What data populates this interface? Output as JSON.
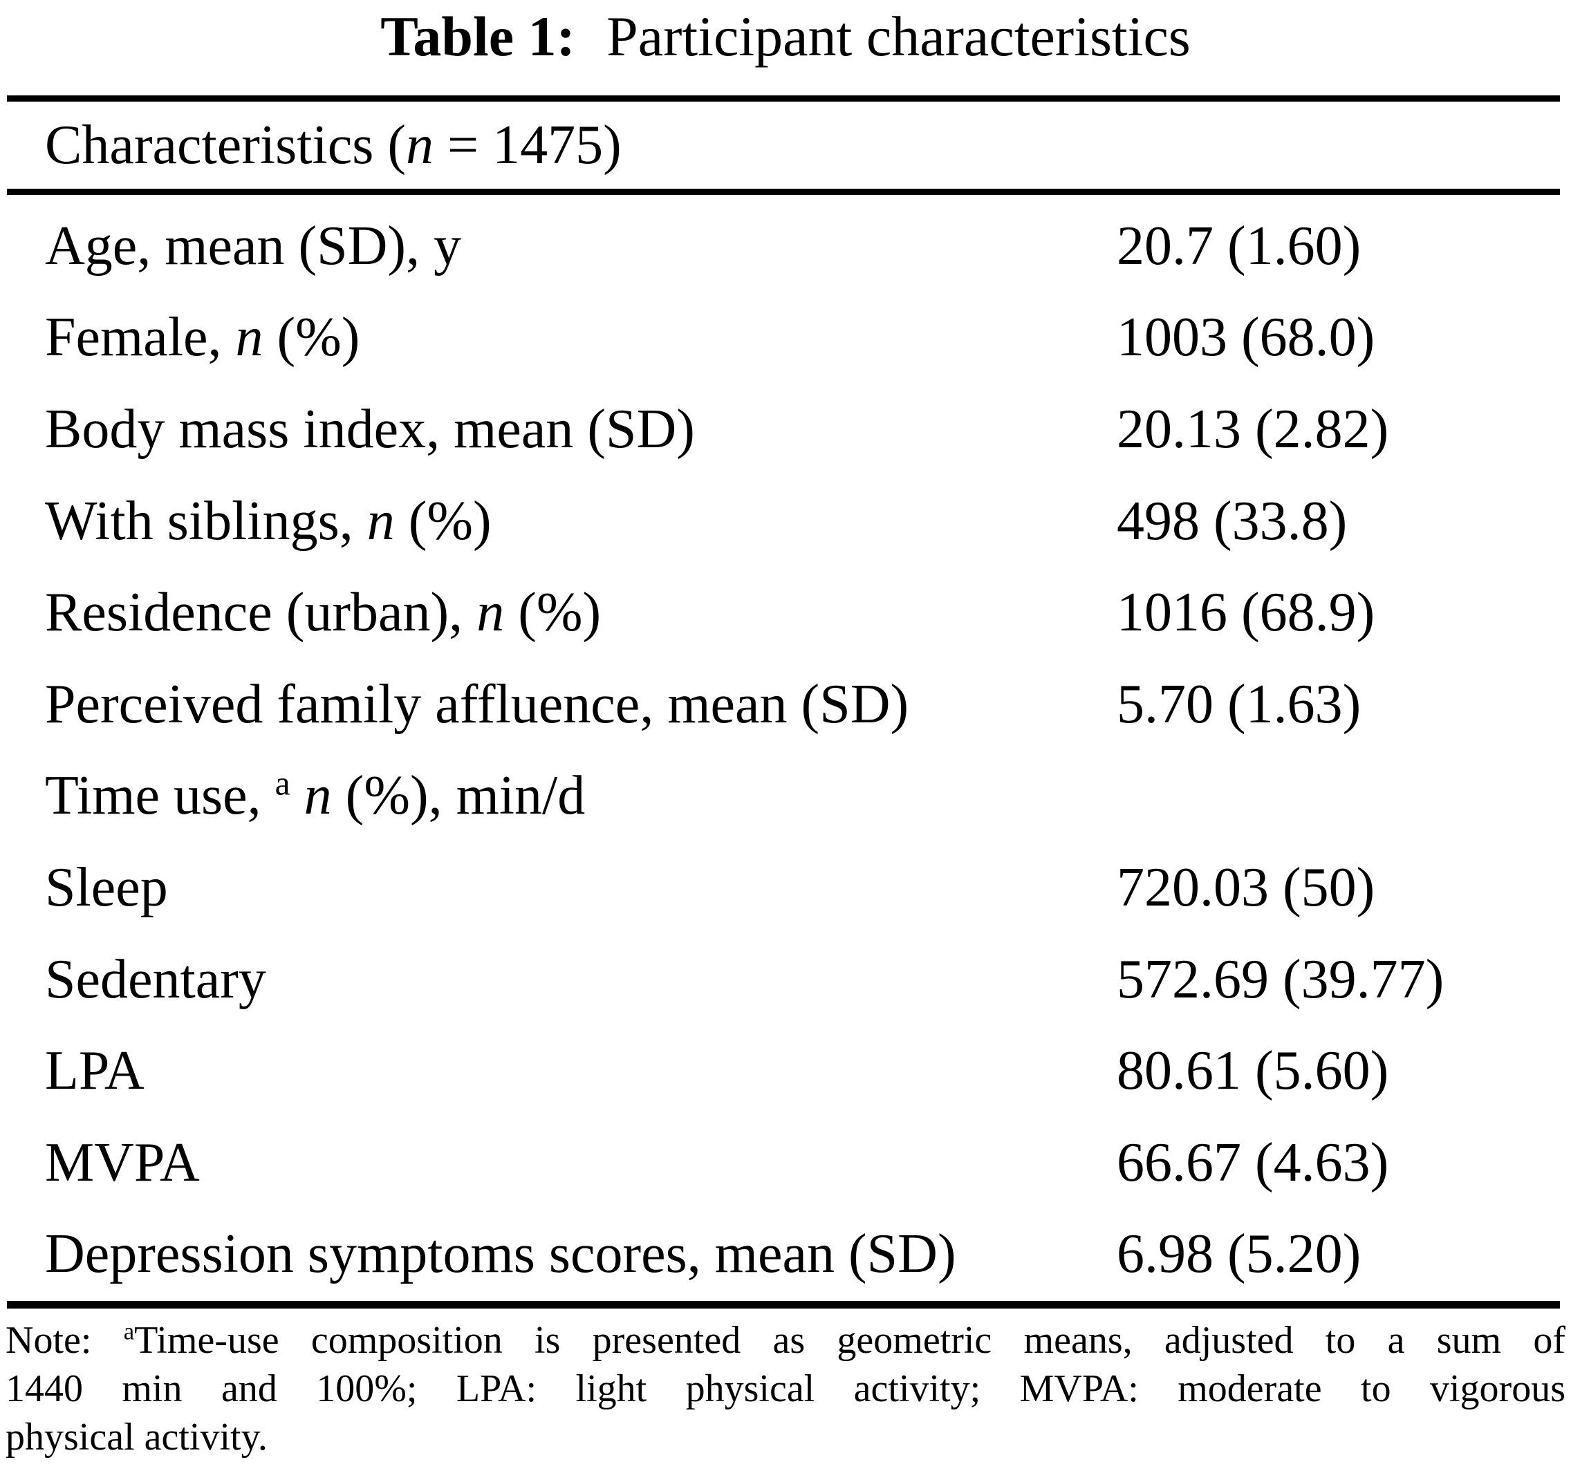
{
  "colors": {
    "background": "#ffffff",
    "text": "#000000",
    "rule": "#000000"
  },
  "table": {
    "title": {
      "label_bold": "Table 1:",
      "label_rest": "Participant characteristics"
    },
    "header": "Characteristics (*n* = 1475)",
    "rows": [
      {
        "label": "Age, mean (SD), y",
        "value": "20.7 (1.60)"
      },
      {
        "label": "Female, *n* (%)",
        "value": "1003 (68.0)"
      },
      {
        "label": "Body mass index, mean (SD)",
        "value": "20.13 (2.82)"
      },
      {
        "label": "With siblings, *n* (%)",
        "value": "498 (33.8)"
      },
      {
        "label": "Residence (urban), *n* (%)",
        "value": "1016 (68.9)"
      },
      {
        "label": "Perceived family affluence, mean (SD)",
        "value": "5.70 (1.63)"
      },
      {
        "label": "Time use, ^a^ *n* (%), min/d",
        "value": ""
      },
      {
        "label": "Sleep",
        "value": "720.03 (50)"
      },
      {
        "label": "Sedentary",
        "value": "572.69 (39.77)"
      },
      {
        "label": "LPA",
        "value": "80.61 (5.60)"
      },
      {
        "label": "MVPA",
        "value": "66.67 (4.63)"
      },
      {
        "label": "Depression symptoms scores, mean (SD)",
        "value": "6.98 (5.20)"
      }
    ],
    "note_lines": [
      "Note: ^a^Time-use composition is presented as geometric means, adjusted to a sum of",
      "1440 min and 100%; LPA: light physical activity; MVPA: moderate to vigorous",
      "physical activity."
    ]
  }
}
